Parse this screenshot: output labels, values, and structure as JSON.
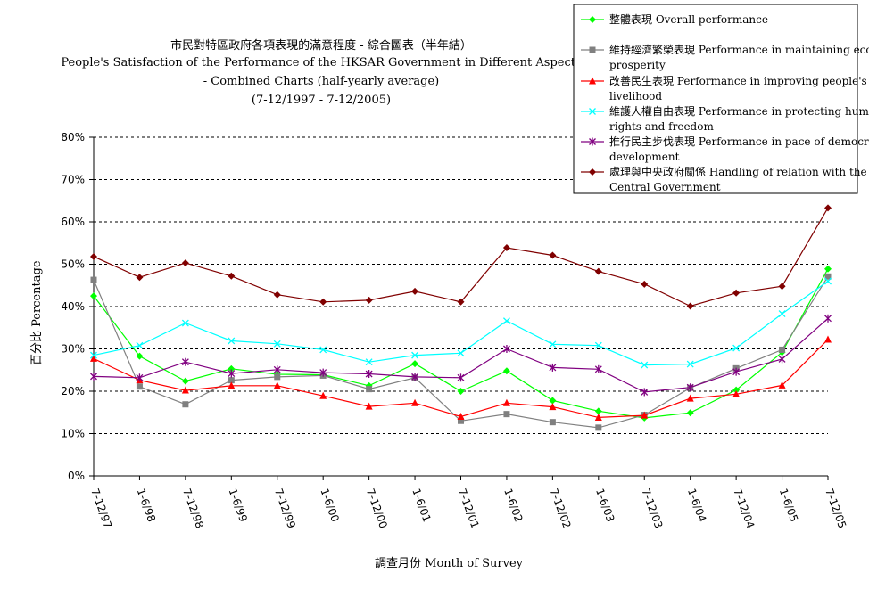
{
  "chart_data": {
    "type": "line",
    "title_zh": "市民對特區政府各項表現的滿意程度 - 綜合圖表（半年結）",
    "title_en": "People's Satisfaction of the Performance of the HKSAR Government in Different Aspects",
    "subtitle": "- Combined Charts (half-yearly average)",
    "period": "(7-12/1997 - 7-12/2005)",
    "xlabel": "調查月份 Month of Survey",
    "ylabel": "百分比 Percentage",
    "ylim": [
      0,
      80
    ],
    "yticks": [
      "0%",
      "10%",
      "20%",
      "30%",
      "40%",
      "50%",
      "60%",
      "70%",
      "80%"
    ],
    "grid": "horizontal-dashed",
    "legend_position": "top-right",
    "categories": [
      "7-12/97",
      "1-6/98",
      "7-12/98",
      "1-6/99",
      "7-12/99",
      "1-6/00",
      "7-12/00",
      "1-6/01",
      "7-12/01",
      "1-6/02",
      "7-12/02",
      "1-6/03",
      "7-12/03",
      "1-6/04",
      "7-12/04",
      "1-6/05",
      "7-12/05"
    ],
    "series": [
      {
        "name": "整體表現 Overall performance",
        "color": "#00ff00",
        "marker": "diamond",
        "values": [
          42.5,
          28.3,
          22.4,
          25.3,
          24.0,
          23.9,
          21.3,
          26.5,
          20.0,
          24.8,
          17.8,
          15.3,
          13.7,
          14.9,
          20.3,
          29.2,
          48.9
        ]
      },
      {
        "name": "維持經濟繁榮表現 Performance in maintaining economic prosperity",
        "color": "#808080",
        "marker": "square",
        "values": [
          46.3,
          21.1,
          16.9,
          22.6,
          23.4,
          23.7,
          20.5,
          23.2,
          13.0,
          14.6,
          12.7,
          11.4,
          14.4,
          20.8,
          25.4,
          29.8,
          47.1
        ]
      },
      {
        "name": "改善民生表現 Performance in improving people's livelihood",
        "color": "#ff0000",
        "marker": "triangle",
        "values": [
          27.7,
          22.6,
          20.2,
          21.3,
          21.3,
          18.9,
          16.4,
          17.2,
          14.0,
          17.2,
          16.3,
          13.8,
          14.3,
          18.3,
          19.3,
          21.4,
          32.2
        ]
      },
      {
        "name": "維護人權自由表現 Performance in protecting human rights and freedom",
        "color": "#00ffff",
        "marker": "x",
        "values": [
          28.5,
          30.8,
          36.1,
          31.9,
          31.2,
          29.8,
          26.9,
          28.5,
          29.0,
          36.6,
          31.1,
          30.8,
          26.2,
          26.4,
          30.2,
          38.3,
          46.0
        ]
      },
      {
        "name": "推行民主步伐表現 Performance in pace of democratic development",
        "color": "#800080",
        "marker": "star",
        "values": [
          23.5,
          23.2,
          26.9,
          24.2,
          25.1,
          24.4,
          24.1,
          23.4,
          23.2,
          30.0,
          25.6,
          25.2,
          19.8,
          20.9,
          24.6,
          27.6,
          37.2
        ]
      },
      {
        "name": "處理與中央政府關係 Handling of relation with the Central Government",
        "color": "#800000",
        "marker": "diamond",
        "values": [
          51.8,
          46.9,
          50.3,
          47.2,
          42.8,
          41.1,
          41.5,
          43.6,
          41.1,
          53.9,
          52.1,
          48.3,
          45.3,
          40.1,
          43.2,
          44.8,
          63.3
        ]
      }
    ]
  }
}
